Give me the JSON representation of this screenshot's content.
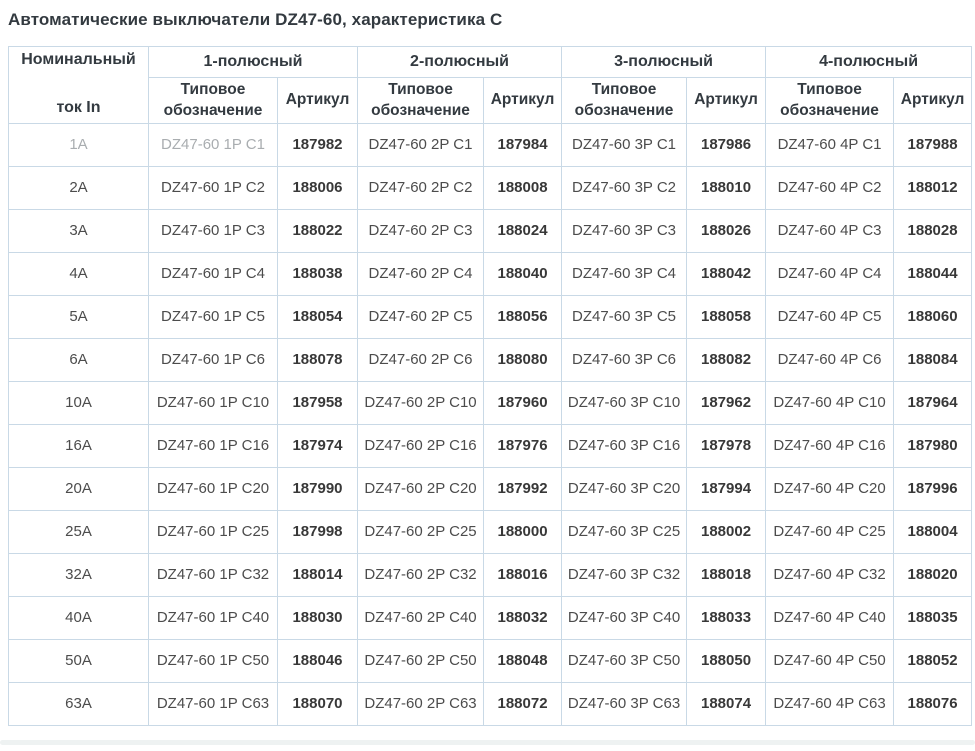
{
  "title": "Автоматические выключатели DZ47-60, характеристика C",
  "table": {
    "corner_header_line1": "Номинальный",
    "corner_header_line2": "ток In",
    "groups": [
      {
        "label": "1-полюсный"
      },
      {
        "label": "2-полюсный"
      },
      {
        "label": "3-полюсный"
      },
      {
        "label": "4-полюсный"
      }
    ],
    "subheaders": {
      "type": "Типовое обозначение",
      "article": "Артикул"
    },
    "rows": [
      {
        "current": "1A",
        "muted": true,
        "cols": [
          {
            "type": "DZ47-60 1P C1",
            "article": "187982"
          },
          {
            "type": "DZ47-60 2P C1",
            "article": "187984"
          },
          {
            "type": "DZ47-60 3P C1",
            "article": "187986"
          },
          {
            "type": "DZ47-60 4P C1",
            "article": "187988"
          }
        ]
      },
      {
        "current": "2A",
        "muted": false,
        "cols": [
          {
            "type": "DZ47-60 1P C2",
            "article": "188006"
          },
          {
            "type": "DZ47-60 2P C2",
            "article": "188008"
          },
          {
            "type": "DZ47-60 3P C2",
            "article": "188010"
          },
          {
            "type": "DZ47-60 4P C2",
            "article": "188012"
          }
        ]
      },
      {
        "current": "3A",
        "muted": false,
        "cols": [
          {
            "type": "DZ47-60 1P C3",
            "article": "188022"
          },
          {
            "type": "DZ47-60 2P C3",
            "article": "188024"
          },
          {
            "type": "DZ47-60 3P C3",
            "article": "188026"
          },
          {
            "type": "DZ47-60 4P C3",
            "article": "188028"
          }
        ]
      },
      {
        "current": "4A",
        "muted": false,
        "cols": [
          {
            "type": "DZ47-60 1P C4",
            "article": "188038"
          },
          {
            "type": "DZ47-60 2P C4",
            "article": "188040"
          },
          {
            "type": "DZ47-60 3P C4",
            "article": "188042"
          },
          {
            "type": "DZ47-60 4P C4",
            "article": "188044"
          }
        ]
      },
      {
        "current": "5A",
        "muted": false,
        "cols": [
          {
            "type": "DZ47-60 1P C5",
            "article": "188054"
          },
          {
            "type": "DZ47-60 2P C5",
            "article": "188056"
          },
          {
            "type": "DZ47-60 3P C5",
            "article": "188058"
          },
          {
            "type": "DZ47-60 4P C5",
            "article": "188060"
          }
        ]
      },
      {
        "current": "6A",
        "muted": false,
        "cols": [
          {
            "type": "DZ47-60 1P C6",
            "article": "188078"
          },
          {
            "type": "DZ47-60 2P C6",
            "article": "188080"
          },
          {
            "type": "DZ47-60 3P C6",
            "article": "188082"
          },
          {
            "type": "DZ47-60 4P C6",
            "article": "188084"
          }
        ]
      },
      {
        "current": "10A",
        "muted": false,
        "cols": [
          {
            "type": "DZ47-60 1P C10",
            "article": "187958"
          },
          {
            "type": "DZ47-60 2P C10",
            "article": "187960"
          },
          {
            "type": "DZ47-60 3P C10",
            "article": "187962"
          },
          {
            "type": "DZ47-60 4P C10",
            "article": "187964"
          }
        ]
      },
      {
        "current": "16A",
        "muted": false,
        "cols": [
          {
            "type": "DZ47-60 1P C16",
            "article": "187974"
          },
          {
            "type": "DZ47-60 2P C16",
            "article": "187976"
          },
          {
            "type": "DZ47-60 3P C16",
            "article": "187978"
          },
          {
            "type": "DZ47-60 4P C16",
            "article": "187980"
          }
        ]
      },
      {
        "current": "20A",
        "muted": false,
        "cols": [
          {
            "type": "DZ47-60 1P C20",
            "article": "187990"
          },
          {
            "type": "DZ47-60 2P C20",
            "article": "187992"
          },
          {
            "type": "DZ47-60 3P C20",
            "article": "187994"
          },
          {
            "type": "DZ47-60 4P C20",
            "article": "187996"
          }
        ]
      },
      {
        "current": "25A",
        "muted": false,
        "cols": [
          {
            "type": "DZ47-60 1P C25",
            "article": "187998"
          },
          {
            "type": "DZ47-60 2P C25",
            "article": "188000"
          },
          {
            "type": "DZ47-60 3P C25",
            "article": "188002"
          },
          {
            "type": "DZ47-60 4P C25",
            "article": "188004"
          }
        ]
      },
      {
        "current": "32A",
        "muted": false,
        "cols": [
          {
            "type": "DZ47-60 1P C32",
            "article": "188014"
          },
          {
            "type": "DZ47-60 2P C32",
            "article": "188016"
          },
          {
            "type": "DZ47-60 3P C32",
            "article": "188018"
          },
          {
            "type": "DZ47-60 4P C32",
            "article": "188020"
          }
        ]
      },
      {
        "current": "40A",
        "muted": false,
        "cols": [
          {
            "type": "DZ47-60 1P C40",
            "article": "188030"
          },
          {
            "type": "DZ47-60 2P C40",
            "article": "188032"
          },
          {
            "type": "DZ47-60 3P C40",
            "article": "188033"
          },
          {
            "type": "DZ47-60 4P C40",
            "article": "188035"
          }
        ]
      },
      {
        "current": "50A",
        "muted": false,
        "cols": [
          {
            "type": "DZ47-60 1P C50",
            "article": "188046"
          },
          {
            "type": "DZ47-60 2P C50",
            "article": "188048"
          },
          {
            "type": "DZ47-60 3P C50",
            "article": "188050"
          },
          {
            "type": "DZ47-60 4P C50",
            "article": "188052"
          }
        ]
      },
      {
        "current": "63A",
        "muted": false,
        "cols": [
          {
            "type": "DZ47-60 1P C63",
            "article": "188070"
          },
          {
            "type": "DZ47-60 2P C63",
            "article": "188072"
          },
          {
            "type": "DZ47-60 3P C63",
            "article": "188074"
          },
          {
            "type": "DZ47-60 4P C63",
            "article": "188076"
          }
        ]
      }
    ]
  }
}
